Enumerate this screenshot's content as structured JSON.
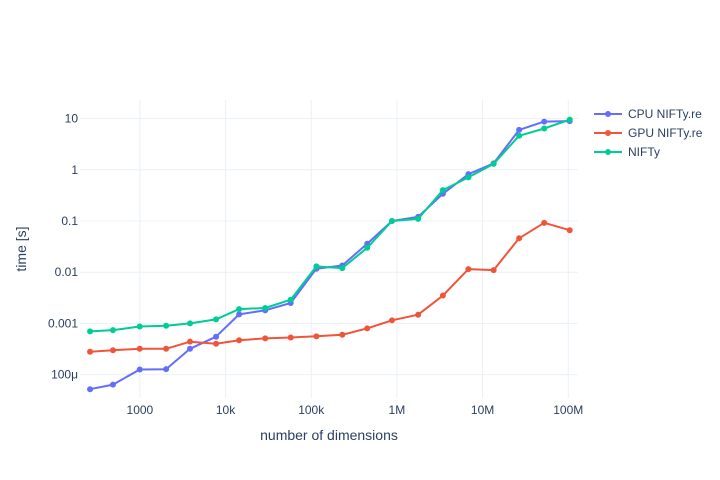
{
  "chart_data": {
    "type": "line",
    "xlabel": "number of dimensions",
    "ylabel": "time [s]",
    "x_scale": "log",
    "y_scale": "log",
    "xlim": [
      200,
      130000000
    ],
    "ylim": [
      3.5e-05,
      23
    ],
    "grid": true,
    "legend_position": "top-right",
    "x_ticks": [
      {
        "value": 1000,
        "label": "1000"
      },
      {
        "value": 10000,
        "label": "10k"
      },
      {
        "value": 100000,
        "label": "100k"
      },
      {
        "value": 1000000,
        "label": "1M"
      },
      {
        "value": 10000000,
        "label": "10M"
      },
      {
        "value": 100000000,
        "label": "100M"
      }
    ],
    "y_ticks": [
      {
        "value": 0.0001,
        "label": "100μ"
      },
      {
        "value": 0.001,
        "label": "0.001"
      },
      {
        "value": 0.01,
        "label": "0.01"
      },
      {
        "value": 0.1,
        "label": "0.1"
      },
      {
        "value": 1,
        "label": "1"
      },
      {
        "value": 10,
        "label": "10"
      }
    ],
    "series": [
      {
        "name": "CPU NIFTy.re",
        "color": "#636efa",
        "x": [
          262,
          485,
          996,
          2024,
          3845,
          7744,
          14400,
          29026,
          57600,
          114921,
          230400,
          450241,
          876096,
          1768900,
          3444736,
          6838225,
          13468900,
          26726400,
          52417600,
          104040000
        ],
        "y": [
          5.2e-05,
          6.4e-05,
          0.000126,
          0.000128,
          0.00032,
          0.00055,
          0.0015,
          0.0018,
          0.0025,
          0.0117,
          0.0135,
          0.036,
          0.1,
          0.12,
          0.34,
          0.82,
          1.33,
          6.0,
          8.7,
          8.9
        ]
      },
      {
        "name": "GPU NIFTy.re",
        "color": "#ef553b",
        "x": [
          262,
          485,
          996,
          2024,
          3845,
          7744,
          14400,
          29026,
          57600,
          114921,
          230400,
          450241,
          876096,
          1768900,
          3444736,
          6838225,
          13468900,
          26726400,
          52417600,
          104040000
        ],
        "y": [
          0.00028,
          0.0003,
          0.00032,
          0.00032,
          0.00044,
          0.0004,
          0.00047,
          0.00051,
          0.00053,
          0.00056,
          0.0006,
          0.0008,
          0.00115,
          0.00148,
          0.0035,
          0.0115,
          0.011,
          0.046,
          0.092,
          0.066
        ]
      },
      {
        "name": "NIFTy",
        "color": "#00cc96",
        "x": [
          262,
          485,
          996,
          2024,
          3845,
          7744,
          14400,
          29026,
          57600,
          114921,
          230400,
          450241,
          876096,
          1768900,
          3444736,
          6838225,
          13468900,
          26726400,
          52417600,
          104040000
        ],
        "y": [
          0.0007,
          0.00074,
          0.00087,
          0.0009,
          0.001,
          0.0012,
          0.0019,
          0.002,
          0.0029,
          0.013,
          0.012,
          0.03,
          0.1,
          0.11,
          0.4,
          0.71,
          1.3,
          4.6,
          6.4,
          9.5
        ]
      }
    ]
  }
}
